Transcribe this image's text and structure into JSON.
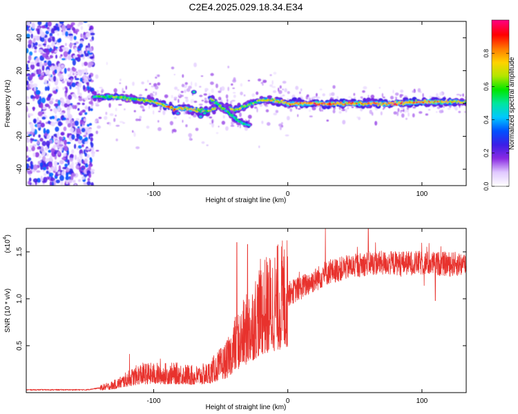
{
  "figure": {
    "title": "C2E4.2025.029.18.34.E34"
  },
  "chart_data": [
    {
      "type": "heatmap",
      "name": "spectrogram",
      "xlabel": "Height of straight line (km)",
      "ylabel": "Frequency (Hz)",
      "xlim": [
        -195,
        133
      ],
      "ylim": [
        -50,
        50
      ],
      "x_ticks": [
        -100,
        0,
        100
      ],
      "y_ticks": [
        -40,
        -20,
        0,
        20,
        40
      ],
      "colorbar": {
        "label": "Normalized spectral amplitude",
        "range": [
          0,
          1
        ],
        "ticks": [
          0.0,
          0.2,
          0.4,
          0.6,
          0.8
        ],
        "colormap": [
          "#ffffff",
          "#e0c8ff",
          "#8a2be2",
          "#3c1ee6",
          "#0050ff",
          "#00c8ff",
          "#00e6a0",
          "#00e600",
          "#b4e600",
          "#ffd200",
          "#ff7800",
          "#ff0000",
          "#ff0078"
        ]
      },
      "noise_region_x": [
        -195,
        -145
      ],
      "ridge": [
        {
          "x": -145,
          "freq": 4,
          "amp": 0.55
        },
        {
          "x": -130,
          "freq": 4,
          "amp": 0.65
        },
        {
          "x": -115,
          "freq": 3,
          "amp": 0.62
        },
        {
          "x": -100,
          "freq": 1,
          "amp": 0.72
        },
        {
          "x": -85,
          "freq": -3,
          "amp": 0.85
        },
        {
          "x": -75,
          "freq": -3,
          "amp": 0.78
        },
        {
          "x": -60,
          "freq": -5,
          "amp": 0.7
        },
        {
          "x": -50,
          "freq": -1,
          "amp": 0.68
        },
        {
          "x": -40,
          "freq": -4,
          "amp": 0.72
        },
        {
          "x": -30,
          "freq": -1,
          "amp": 0.65
        },
        {
          "x": -20,
          "freq": 2,
          "amp": 0.7
        },
        {
          "x": -10,
          "freq": 2,
          "amp": 0.75
        },
        {
          "x": 0,
          "freq": 0,
          "amp": 0.85
        },
        {
          "x": 20,
          "freq": 0,
          "amp": 0.92
        },
        {
          "x": 40,
          "freq": 0,
          "amp": 0.88
        },
        {
          "x": 60,
          "freq": 0,
          "amp": 0.8
        },
        {
          "x": 80,
          "freq": 0,
          "amp": 0.9
        },
        {
          "x": 100,
          "freq": 1,
          "amp": 0.85
        },
        {
          "x": 120,
          "freq": 1,
          "amp": 0.8
        },
        {
          "x": 133,
          "freq": 1,
          "amp": 0.7
        }
      ],
      "branch": [
        {
          "x": -58,
          "freq": 3,
          "amp": 0.7
        },
        {
          "x": -48,
          "freq": -3,
          "amp": 0.6
        },
        {
          "x": -38,
          "freq": -10,
          "amp": 0.55
        },
        {
          "x": -28,
          "freq": -14,
          "amp": 0.5
        }
      ],
      "spots": [
        {
          "x": -70,
          "freq": 7,
          "amp": 0.5
        },
        {
          "x": -65,
          "freq": -8,
          "amp": 0.45
        },
        {
          "x": -62,
          "freq": -6,
          "amp": 0.5
        },
        {
          "x": -82,
          "freq": -6,
          "amp": 0.4
        }
      ]
    },
    {
      "type": "line",
      "name": "snr",
      "xlabel": "Height of straight line (km)",
      "ylabel": "SNR (10 * v/v)",
      "y_multiplier": "(x10",
      "y_multiplier_exp": "4",
      "y_multiplier_close": ")",
      "xlim": [
        -195,
        133
      ],
      "ylim": [
        0,
        1.75
      ],
      "x_ticks": [
        -100,
        0,
        100
      ],
      "y_ticks": [
        0.5,
        1.0,
        1.5
      ],
      "y_tick_labels": [
        "0.5",
        "1.0",
        "1.5"
      ],
      "color": "#e8322d",
      "envelope_x": [
        -195,
        -150,
        -140,
        -130,
        -120,
        -110,
        -100,
        -90,
        -80,
        -70,
        -60,
        -50,
        -45,
        -40,
        -35,
        -30,
        -25,
        -20,
        -15,
        -10,
        -5,
        0,
        10,
        20,
        30,
        40,
        60,
        80,
        100,
        120,
        133
      ],
      "envelope_y": [
        0.03,
        0.03,
        0.05,
        0.08,
        0.14,
        0.2,
        0.2,
        0.2,
        0.2,
        0.18,
        0.2,
        0.3,
        0.35,
        0.5,
        0.58,
        0.68,
        0.78,
        0.9,
        0.92,
        0.98,
        1.02,
        1.05,
        1.12,
        1.2,
        1.28,
        1.32,
        1.38,
        1.38,
        1.38,
        1.37,
        1.37
      ],
      "spikes": [
        {
          "x": -118,
          "y": 0.41
        },
        {
          "x": -95,
          "y": 0.36
        },
        {
          "x": -72,
          "y": 0.28
        },
        {
          "x": -38,
          "y": 1.6
        },
        {
          "x": -30,
          "y": 1.58
        },
        {
          "x": -20,
          "y": 1.3
        },
        {
          "x": 28,
          "y": 1.75
        },
        {
          "x": 60,
          "y": 1.75
        },
        {
          "x": 110,
          "y": 0.98
        }
      ]
    }
  ]
}
